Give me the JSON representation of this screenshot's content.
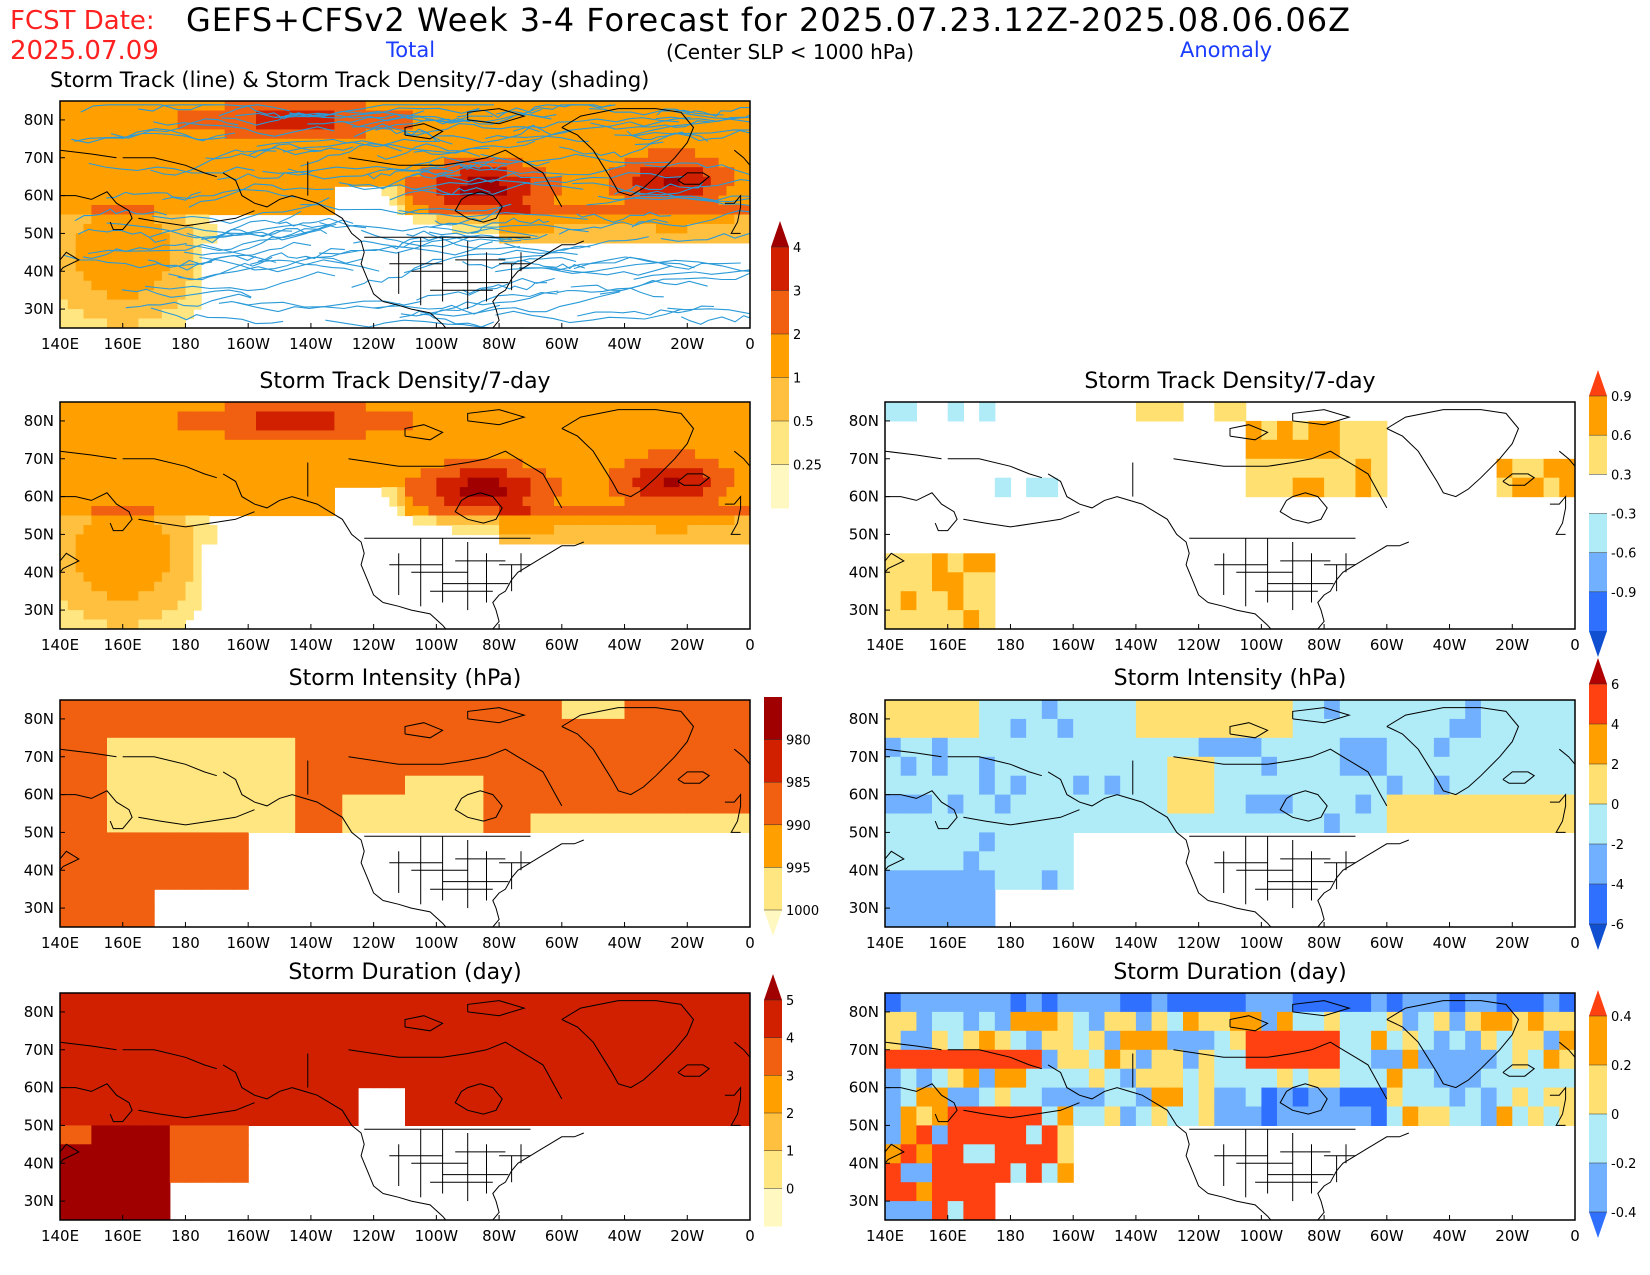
{
  "header": {
    "fcst_date_label": "FCST Date:",
    "fcst_date": "2025.07.09",
    "title": "GEFS+CFSv2 Week 3-4 Forecast for 2025.07.23.12Z-2025.08.06.06Z",
    "total_label": "Total",
    "center_label": "(Center SLP < 1000 hPa)",
    "anomaly_label": "Anomaly",
    "row1_title": "Storm Track (line) & Storm Track Density/7-day (shading)"
  },
  "axes": {
    "lon_labels": [
      "140E",
      "160E",
      "180",
      "160W",
      "140W",
      "120W",
      "100W",
      "80W",
      "60W",
      "40W",
      "20W",
      "0"
    ],
    "lat_labels": [
      "80N",
      "70N",
      "60N",
      "50N",
      "40N",
      "30N"
    ]
  },
  "panels": [
    {
      "id": "track",
      "title": "",
      "colorbar": "density_total"
    },
    {
      "id": "density_total",
      "title": "Storm Track Density/7-day",
      "colorbar": "density_total"
    },
    {
      "id": "density_anom",
      "title": "Storm Track Density/7-day",
      "colorbar": "density_anom"
    },
    {
      "id": "intensity_total",
      "title": "Storm Intensity (hPa)",
      "colorbar": "intensity_total"
    },
    {
      "id": "intensity_anom",
      "title": "Storm Intensity (hPa)",
      "colorbar": "intensity_anom"
    },
    {
      "id": "duration_total",
      "title": "Storm Duration (day)",
      "colorbar": "duration_total"
    },
    {
      "id": "duration_anom",
      "title": "Storm Duration (day)",
      "colorbar": "duration_anom"
    }
  ],
  "colorbars": {
    "density_total": {
      "labels": [
        "0.25",
        "0.5",
        "1",
        "2",
        "3",
        "4"
      ],
      "colors": [
        "#fff8c0",
        "#ffe680",
        "#ffc040",
        "#ffa000",
        "#f06010",
        "#d02000",
        "#a00000"
      ]
    },
    "intensity_total": {
      "labels": [
        "1000",
        "995",
        "990",
        "985",
        "980"
      ],
      "colors": [
        "#fff8c0",
        "#ffe680",
        "#ffa000",
        "#f06010",
        "#d02000",
        "#a00000"
      ]
    },
    "duration_total": {
      "labels": [
        "0",
        "1",
        "2",
        "3",
        "4",
        "5"
      ],
      "colors": [
        "#fff8c0",
        "#ffe680",
        "#ffc040",
        "#ffa000",
        "#f06010",
        "#d02000",
        "#a00000"
      ]
    },
    "density_anom": {
      "labels": [
        "0.9",
        "0.6",
        "0.3",
        "-0.3",
        "-0.6",
        "-0.9"
      ],
      "colors": [
        "#ff4010",
        "#ffa000",
        "#ffe070",
        "#ffffff",
        "#b0ecf8",
        "#70b0ff",
        "#3070ff",
        "#1050d0"
      ]
    },
    "intensity_anom": {
      "labels": [
        "6",
        "4",
        "2",
        "0",
        "-2",
        "-4",
        "-6"
      ],
      "colors": [
        "#b00000",
        "#ff4010",
        "#ffa000",
        "#ffe070",
        "#b0ecf8",
        "#70b0ff",
        "#3070ff",
        "#1050d0"
      ]
    },
    "duration_anom": {
      "labels": [
        "0.4",
        "0.2",
        "0",
        "-0.2",
        "-0.4"
      ],
      "colors": [
        "#ff4010",
        "#ffa000",
        "#ffe070",
        "#b0ecf8",
        "#70b0ff",
        "#3070ff"
      ]
    }
  },
  "colors": {
    "title_red": "#ff2020",
    "label_blue": "#1a3cff",
    "track_line": "#2a9ad8"
  }
}
